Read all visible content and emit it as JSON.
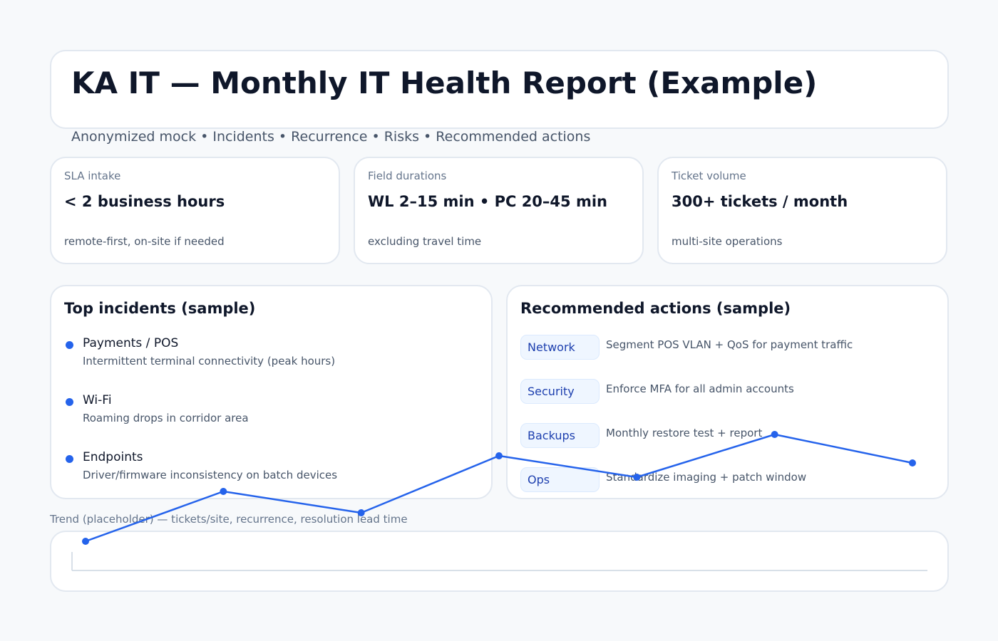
{
  "header": {
    "title": "KA IT — Monthly IT Health Report (Example)",
    "subtitle": "Anonymized mock • Incidents • Recurrence • Risks • Recommended actions"
  },
  "kpis": [
    {
      "label": "SLA intake",
      "value": "< 2 business hours",
      "note": "remote-first, on-site if needed"
    },
    {
      "label": "Field durations",
      "value": "WL 2–15 min • PC 20–45 min",
      "note": "excluding travel time"
    },
    {
      "label": "Ticket volume",
      "value": "300+ tickets / month",
      "note": "multi-site operations"
    }
  ],
  "incidents": {
    "title": "Top incidents (sample)",
    "items": [
      {
        "title": "Payments / POS",
        "description": "Intermittent terminal connectivity (peak hours)"
      },
      {
        "title": "Wi-Fi",
        "description": "Roaming drops in corridor area"
      },
      {
        "title": "Endpoints",
        "description": "Driver/firmware inconsistency on batch devices"
      }
    ]
  },
  "actions": {
    "title": "Recommended actions (sample)",
    "items": [
      {
        "tag": "Network",
        "text": "Segment POS VLAN + QoS for payment traffic"
      },
      {
        "tag": "Security",
        "text": "Enforce MFA for all admin accounts"
      },
      {
        "tag": "Backups",
        "text": "Monthly restore test + report"
      },
      {
        "tag": "Ops",
        "text": "Standardize imaging + patch window"
      }
    ]
  },
  "trend": {
    "label": "Trend (placeholder) — tickets/site, recurrence, resolution lead time"
  },
  "colors": {
    "accent": "#2563eb",
    "background": "#f7f9fb",
    "card": "#ffffff",
    "border": "#e2e8f0",
    "tag_fill": "#eff6ff",
    "tag_text": "#1e40af"
  },
  "chart_data": {
    "type": "line",
    "title": "",
    "xlabel": "",
    "ylabel": "",
    "grid": false,
    "x": [
      1,
      2,
      3,
      4,
      5,
      6,
      7
    ],
    "series": [
      {
        "values": [
          0,
          70,
          40,
          120,
          90,
          150,
          110
        ]
      }
    ],
    "ylim": [
      0,
      160
    ]
  }
}
